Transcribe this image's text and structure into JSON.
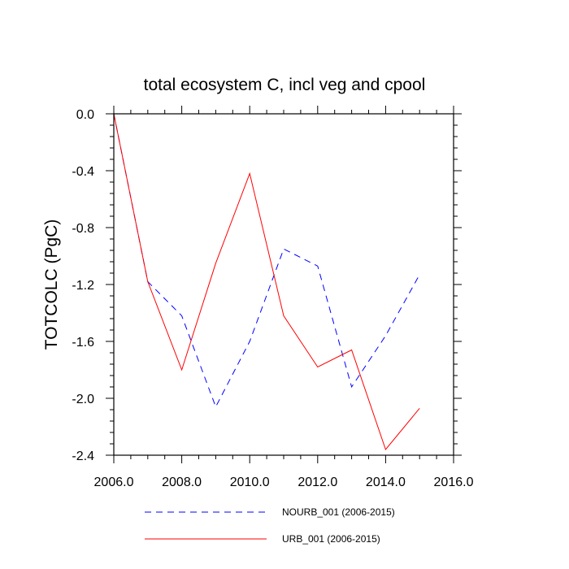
{
  "chart_data": {
    "type": "line",
    "title": "total ecosystem C, incl veg and cpool",
    "xlabel": "",
    "ylabel": "TOTCOLC  (PgC)",
    "xlim": [
      2006,
      2016
    ],
    "ylim": [
      -2.4,
      0.0
    ],
    "xticks": [
      2006,
      2008,
      2010,
      2012,
      2014,
      2016
    ],
    "xtick_labels": [
      "2006.0",
      "2008.0",
      "2010.0",
      "2012.0",
      "2014.0",
      "2016.0"
    ],
    "yticks": [
      0.0,
      -0.4,
      -0.8,
      -1.2,
      -1.6,
      -2.0,
      -2.4
    ],
    "ytick_labels": [
      "0.0",
      "-0.4",
      "-0.8",
      "-1.2",
      "-1.6",
      "-2.0",
      "-2.4"
    ],
    "x": [
      2006,
      2007,
      2008,
      2009,
      2010,
      2011,
      2012,
      2013,
      2014,
      2015
    ],
    "series": [
      {
        "name": "NOURB_001 (2006-2015)",
        "color": "#0000ff",
        "dash": "dashed",
        "values": [
          0.0,
          -1.18,
          -1.42,
          -2.06,
          -1.6,
          -0.95,
          -1.07,
          -1.92,
          -1.56,
          -1.13
        ]
      },
      {
        "name": "URB_001 (2006-2015)",
        "color": "#ff0000",
        "dash": "solid",
        "values": [
          0.0,
          -1.18,
          -1.8,
          -1.05,
          -0.42,
          -1.42,
          -1.78,
          -1.66,
          -2.36,
          -2.07
        ]
      }
    ],
    "legend_position": "bottom-center"
  }
}
